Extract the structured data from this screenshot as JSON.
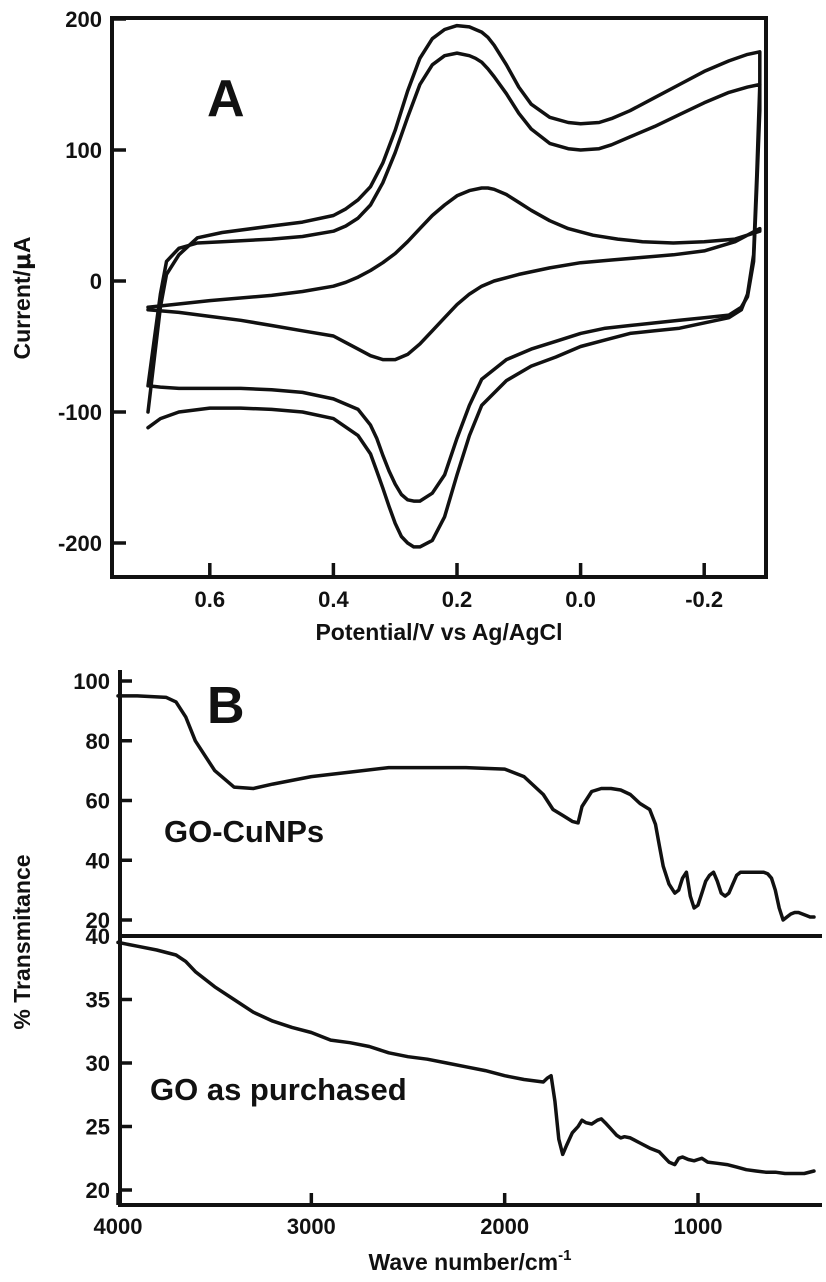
{
  "chart_data": [
    {
      "type": "line",
      "panel": "A",
      "xlabel": "Potential/V vs Ag/AgCl",
      "ylabel_prefix": "Current/",
      "ylabel_mu": "μ",
      "ylabel_suffix": "A",
      "xlim": [
        0.7,
        -0.3
      ],
      "ylim": [
        -210,
        200
      ],
      "x_reversed": true,
      "x_ticks": [
        {
          "value": 0.6,
          "label": "0.6"
        },
        {
          "value": 0.4,
          "label": "0.4"
        },
        {
          "value": 0.2,
          "label": "0.2"
        },
        {
          "value": 0.0,
          "label": "0.0"
        },
        {
          "value": -0.2,
          "label": "-0.2"
        }
      ],
      "y_ticks": [
        {
          "value": 200,
          "label": "200"
        },
        {
          "value": 100,
          "label": "100"
        },
        {
          "value": 0,
          "label": "0"
        },
        {
          "value": -100,
          "label": "-100"
        },
        {
          "value": -200,
          "label": "-200"
        }
      ],
      "series": [
        {
          "x": [
            0.7,
            0.69,
            0.68,
            0.67,
            0.65,
            0.62,
            0.58,
            0.5,
            0.45,
            0.4,
            0.38,
            0.36,
            0.34,
            0.32,
            0.3,
            0.28,
            0.26,
            0.24,
            0.22,
            0.2,
            0.18,
            0.17,
            0.16,
            0.15,
            0.14,
            0.12,
            0.1,
            0.08,
            0.05,
            0.02,
            0.0,
            -0.03,
            -0.05,
            -0.08,
            -0.12,
            -0.16,
            -0.2,
            -0.24,
            -0.27,
            -0.29,
            -0.29,
            -0.285,
            -0.28,
            -0.27,
            -0.26,
            -0.24,
            -0.2,
            -0.16,
            -0.12,
            -0.08,
            -0.04,
            0.0,
            0.04,
            0.08,
            0.12,
            0.16,
            0.18,
            0.2,
            0.22,
            0.24,
            0.26,
            0.27,
            0.28,
            0.29,
            0.3,
            0.31,
            0.32,
            0.33,
            0.34,
            0.36,
            0.4,
            0.45,
            0.5,
            0.55,
            0.6,
            0.65,
            0.68,
            0.7
          ],
          "y": [
            -100,
            -60,
            -20,
            5,
            20,
            33,
            37,
            42,
            45,
            50,
            55,
            62,
            72,
            90,
            115,
            145,
            170,
            185,
            192,
            195,
            194,
            192,
            190,
            186,
            180,
            165,
            148,
            135,
            125,
            121,
            120,
            121,
            124,
            130,
            140,
            150,
            160,
            168,
            173,
            175,
            150,
            80,
            20,
            -10,
            -22,
            -28,
            -32,
            -36,
            -38,
            -40,
            -45,
            -50,
            -58,
            -65,
            -76,
            -95,
            -118,
            -148,
            -180,
            -198,
            -203,
            -203,
            -200,
            -195,
            -185,
            -172,
            -158,
            -145,
            -132,
            -118,
            -105,
            -100,
            -98,
            -97,
            -97,
            -100,
            -105,
            -112
          ]
        },
        {
          "x": [
            0.7,
            0.69,
            0.68,
            0.67,
            0.65,
            0.62,
            0.58,
            0.5,
            0.45,
            0.4,
            0.38,
            0.36,
            0.34,
            0.32,
            0.3,
            0.28,
            0.26,
            0.24,
            0.22,
            0.2,
            0.18,
            0.17,
            0.16,
            0.15,
            0.14,
            0.12,
            0.1,
            0.08,
            0.05,
            0.02,
            0.0,
            -0.03,
            -0.05,
            -0.08,
            -0.12,
            -0.16,
            -0.2,
            -0.24,
            -0.27,
            -0.29,
            -0.29,
            -0.285,
            -0.28,
            -0.27,
            -0.26,
            -0.24,
            -0.2,
            -0.16,
            -0.12,
            -0.08,
            -0.04,
            0.0,
            0.04,
            0.08,
            0.12,
            0.16,
            0.18,
            0.2,
            0.22,
            0.24,
            0.26,
            0.27,
            0.28,
            0.29,
            0.3,
            0.31,
            0.32,
            0.33,
            0.34,
            0.36,
            0.4,
            0.45,
            0.5,
            0.55,
            0.6,
            0.65,
            0.68,
            0.7
          ],
          "y": [
            -80,
            -45,
            -10,
            15,
            25,
            29,
            30,
            32,
            34,
            38,
            42,
            48,
            58,
            75,
            98,
            125,
            150,
            165,
            172,
            174,
            172,
            170,
            167,
            162,
            156,
            143,
            128,
            116,
            105,
            101,
            100,
            101,
            104,
            110,
            118,
            127,
            136,
            144,
            148,
            150,
            130,
            70,
            15,
            -12,
            -20,
            -26,
            -28,
            -30,
            -32,
            -34,
            -36,
            -40,
            -46,
            -52,
            -60,
            -75,
            -95,
            -120,
            -148,
            -162,
            -168,
            -168,
            -167,
            -163,
            -155,
            -145,
            -133,
            -120,
            -110,
            -98,
            -90,
            -85,
            -83,
            -82,
            -82,
            -82,
            -81,
            -80
          ]
        },
        {
          "x": [
            0.7,
            0.66,
            0.6,
            0.5,
            0.45,
            0.4,
            0.38,
            0.36,
            0.34,
            0.32,
            0.3,
            0.28,
            0.26,
            0.24,
            0.22,
            0.2,
            0.18,
            0.16,
            0.15,
            0.14,
            0.12,
            0.1,
            0.08,
            0.05,
            0.02,
            -0.02,
            -0.06,
            -0.1,
            -0.15,
            -0.2,
            -0.25,
            -0.29,
            -0.29,
            -0.25,
            -0.2,
            -0.15,
            -0.1,
            -0.05,
            0.0,
            0.05,
            0.1,
            0.14,
            0.16,
            0.18,
            0.2,
            0.22,
            0.24,
            0.26,
            0.28,
            0.3,
            0.32,
            0.34,
            0.36,
            0.38,
            0.4,
            0.45,
            0.5,
            0.55,
            0.6,
            0.65,
            0.7
          ],
          "y": [
            -20,
            -18,
            -15,
            -11,
            -8,
            -4,
            -1,
            3,
            8,
            14,
            21,
            30,
            40,
            50,
            58,
            65,
            69,
            71,
            71,
            70,
            66,
            60,
            54,
            46,
            40,
            35,
            32,
            30,
            29,
            30,
            32,
            38,
            40,
            30,
            23,
            20,
            18,
            16,
            14,
            10,
            5,
            0,
            -4,
            -10,
            -18,
            -28,
            -38,
            -48,
            -56,
            -60,
            -60,
            -57,
            -52,
            -47,
            -42,
            -38,
            -34,
            -30,
            -27,
            -24,
            -22
          ]
        }
      ]
    },
    {
      "type": "line",
      "panel": "B",
      "xlabel_base": "Wave number/cm",
      "xlabel_sup": "-1",
      "ylabel": "% Transmitance",
      "xlim": [
        4000,
        400
      ],
      "x_reversed": true,
      "x_ticks": [
        {
          "value": 4000,
          "label": "4000"
        },
        {
          "value": 3000,
          "label": "3000"
        },
        {
          "value": 2000,
          "label": "2000"
        },
        {
          "value": 1000,
          "label": "1000"
        }
      ],
      "subplots": [
        {
          "name": "GO-CuNPs",
          "ylim": [
            17,
            101
          ],
          "y_ticks": [
            {
              "value": 100,
              "label": "100"
            },
            {
              "value": 80,
              "label": "80"
            },
            {
              "value": 60,
              "label": "60"
            },
            {
              "value": 40,
              "label": "40"
            },
            {
              "value": 20,
              "label": "20"
            }
          ],
          "x": [
            4000,
            3900,
            3750,
            3700,
            3650,
            3600,
            3500,
            3400,
            3300,
            3200,
            3000,
            2800,
            2600,
            2400,
            2200,
            2000,
            1900,
            1800,
            1750,
            1700,
            1650,
            1620,
            1600,
            1550,
            1500,
            1450,
            1400,
            1350,
            1300,
            1250,
            1220,
            1200,
            1180,
            1150,
            1120,
            1100,
            1080,
            1060,
            1040,
            1020,
            1000,
            980,
            960,
            940,
            920,
            900,
            880,
            860,
            840,
            820,
            800,
            780,
            760,
            740,
            720,
            700,
            680,
            660,
            640,
            620,
            600,
            580,
            560,
            540,
            520,
            500,
            480,
            460,
            440,
            420,
            400
          ],
          "y": [
            95,
            95,
            94.5,
            93,
            88,
            80,
            70,
            64.5,
            64,
            65.5,
            68,
            69.5,
            71,
            71,
            71,
            70.5,
            68,
            62,
            57,
            55,
            53,
            52.5,
            58,
            63,
            64,
            64,
            63.5,
            62,
            59,
            57,
            52,
            45,
            38,
            32,
            29,
            30,
            34,
            36,
            28,
            24,
            25,
            29,
            33,
            35,
            36,
            33,
            29,
            28,
            29,
            32,
            35,
            36,
            36,
            36,
            36,
            36,
            36,
            36,
            35.5,
            34,
            30,
            24,
            20,
            21,
            22,
            22.5,
            22.5,
            22,
            21.5,
            21,
            21
          ]
        },
        {
          "name": "GO as purchased",
          "ylim": [
            19.5,
            40
          ],
          "y_ticks": [
            {
              "value": 40,
              "label": "40"
            },
            {
              "value": 35,
              "label": "35"
            },
            {
              "value": 30,
              "label": "30"
            },
            {
              "value": 25,
              "label": "25"
            },
            {
              "value": 20,
              "label": "20"
            }
          ],
          "x": [
            4000,
            3900,
            3800,
            3700,
            3650,
            3600,
            3500,
            3400,
            3300,
            3200,
            3100,
            3000,
            2900,
            2800,
            2700,
            2600,
            2500,
            2400,
            2300,
            2200,
            2100,
            2000,
            1900,
            1800,
            1780,
            1760,
            1740,
            1720,
            1700,
            1680,
            1650,
            1620,
            1600,
            1580,
            1550,
            1520,
            1500,
            1480,
            1450,
            1420,
            1400,
            1380,
            1350,
            1300,
            1250,
            1200,
            1150,
            1120,
            1100,
            1080,
            1050,
            1020,
            1000,
            980,
            950,
            900,
            850,
            800,
            750,
            700,
            650,
            600,
            550,
            500,
            450,
            400
          ],
          "y": [
            39.5,
            39.2,
            38.9,
            38.5,
            38,
            37.2,
            36,
            35,
            34,
            33.3,
            32.8,
            32.4,
            31.8,
            31.6,
            31.3,
            30.8,
            30.5,
            30.3,
            30,
            29.7,
            29.4,
            29,
            28.7,
            28.5,
            28.8,
            29,
            27,
            24,
            22.8,
            23.5,
            24.5,
            25,
            25.5,
            25.3,
            25.2,
            25.5,
            25.6,
            25.3,
            24.8,
            24.3,
            24.1,
            24.2,
            24.1,
            23.7,
            23.3,
            23,
            22.2,
            22,
            22.5,
            22.6,
            22.4,
            22.3,
            22.4,
            22.5,
            22.2,
            22.1,
            22,
            21.8,
            21.6,
            21.5,
            21.4,
            21.4,
            21.3,
            21.3,
            21.3,
            21.5
          ]
        }
      ]
    }
  ]
}
